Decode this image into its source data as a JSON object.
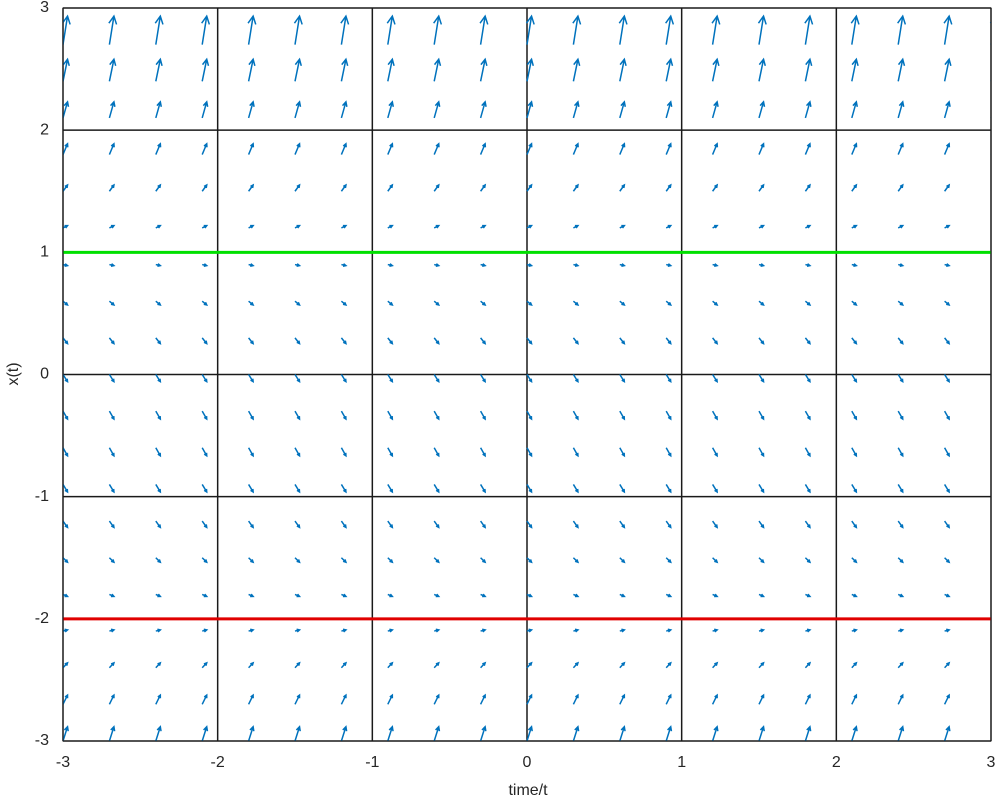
{
  "chart_data": {
    "type": "quiver",
    "xlabel": "time/t",
    "ylabel": "x(t)",
    "t": [
      -3,
      -2.7,
      -2.4,
      -2.1,
      -1.8,
      -1.5,
      -1.2,
      -0.9,
      -0.6,
      -0.3,
      0,
      0.3,
      0.6,
      0.9,
      1.2,
      1.5,
      1.8,
      2.1,
      2.4,
      2.7,
      3
    ],
    "x": [
      -3,
      -2.7,
      -2.4,
      -2.1,
      -1.8,
      -1.5,
      -1.2,
      -0.9,
      -0.6,
      -0.3,
      0,
      0.3,
      0.6,
      0.9,
      1.2,
      1.5,
      1.8,
      2.1,
      2.4,
      2.7,
      3
    ],
    "slope": [
      4,
      2.59,
      1.36,
      0.31,
      -0.56,
      -1.25,
      -1.76,
      -2.09,
      -2.24,
      -2.21,
      -2,
      -1.61,
      -1.04,
      -0.29,
      0.64,
      1.75,
      3.04,
      4.51,
      6.16,
      7.99,
      10
    ],
    "color": "#0072bd",
    "lines": [
      {
        "value": 1,
        "color": "#00e000"
      },
      {
        "value": -2,
        "color": "#e00000"
      }
    ],
    "xlim": [
      -3,
      3
    ],
    "ylim": [
      -3,
      3
    ],
    "xticks": [
      -3,
      -2,
      -1,
      0,
      1,
      2,
      3
    ],
    "yticks": [
      -3,
      -2,
      -1,
      0,
      1,
      2,
      3
    ],
    "grid": true
  }
}
